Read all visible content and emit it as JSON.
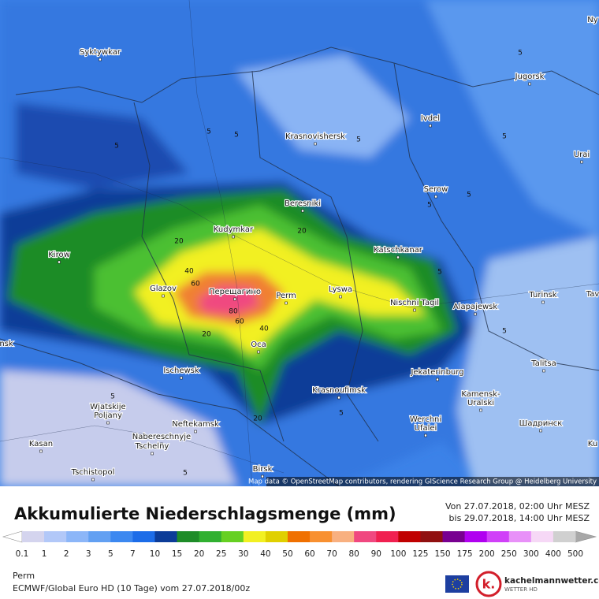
{
  "map": {
    "cities": [
      "Syktywkar",
      "Jugorsk",
      "Ivdel",
      "Krasnovishersk",
      "Urai",
      "Serow",
      "Beresniki",
      "Kudymkar",
      "Kirow",
      "Katschkanar",
      "Glazov",
      "Перещагино",
      "Perm",
      "Lyswa",
      "Nischni Tagil",
      "Alapajewsk",
      "Turinsk",
      "Oca",
      "Talitsa",
      "Ischewsk",
      "Jekaterinburg",
      "Krasnoufimsk",
      "Kamensk-",
      "Uralski",
      "Wjatskije",
      "Poljany",
      "Werchni",
      "Ufalei",
      "Шадринск",
      "Neftekamsk",
      "Nabereschnyje",
      "Tschelny",
      "Kasan",
      "Tschistopol",
      "Birsk",
      "Ny",
      "Tav",
      "nsk",
      "Ku"
    ],
    "contour_labels": [
      "5",
      "5",
      "5",
      "5",
      "5",
      "5",
      "5",
      "5",
      "5",
      "5",
      "5",
      "20",
      "20",
      "20",
      "40",
      "40",
      "60",
      "80",
      "60",
      "20",
      "5",
      "5"
    ],
    "attribution": "Map data © OpenStreetMap contributors, rendering GIScience Research Group @ Heidelberg University"
  },
  "panel": {
    "title": "Akkumulierte Niederschlagsmenge (mm)",
    "from": "Von 27.07.2018, 02:00 Uhr MESZ",
    "to": "bis 29.07.2018, 14:00 Uhr MESZ",
    "location": "Perm",
    "model": "ECMWF/Global Euro HD (10 Tage) vom 27.07.2018/00z",
    "logo": "kachelmannwetter.com",
    "logo_sub": "WETTER HD"
  },
  "legend": {
    "labels": [
      "0.1",
      "1",
      "2",
      "3",
      "5",
      "7",
      "10",
      "15",
      "20",
      "25",
      "30",
      "40",
      "50",
      "60",
      "70",
      "80",
      "90",
      "100",
      "125",
      "150",
      "175",
      "200",
      "250",
      "300",
      "400",
      "500"
    ],
    "colors": [
      "#d4d4ee",
      "#b2c8f8",
      "#8cb6f8",
      "#62a0f2",
      "#3c88f0",
      "#1c6ce8",
      "#0c3c98",
      "#1e8c28",
      "#30b030",
      "#66d022",
      "#f2f022",
      "#e0d000",
      "#f07000",
      "#f89030",
      "#f8b080",
      "#f04880",
      "#f02050",
      "#c00000",
      "#901010",
      "#780090",
      "#b000f0",
      "#d040f8",
      "#e890f8",
      "#f6d8f6",
      "#d0d0d0"
    ]
  }
}
